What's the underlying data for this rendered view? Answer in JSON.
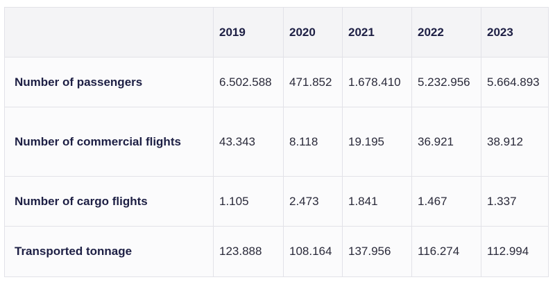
{
  "table": {
    "header": [
      "",
      "2019",
      "2020",
      "2021",
      "2022",
      "2023"
    ],
    "rows": [
      {
        "label": "Number of passengers",
        "values": [
          "6.502.588",
          "471.852",
          "1.678.410",
          "5.232.956",
          "5.664.893"
        ]
      },
      {
        "label": "Number of commercial flights",
        "values": [
          "43.343",
          "8.118",
          "19.195",
          "36.921",
          "38.912"
        ]
      },
      {
        "label": "Number of cargo flights",
        "values": [
          "1.105",
          "2.473",
          "1.841",
          "1.467",
          "1.337"
        ]
      },
      {
        "label": "Transported tonnage",
        "values": [
          "123.888",
          "108.164",
          "137.956",
          "116.274",
          "112.994"
        ]
      }
    ]
  }
}
